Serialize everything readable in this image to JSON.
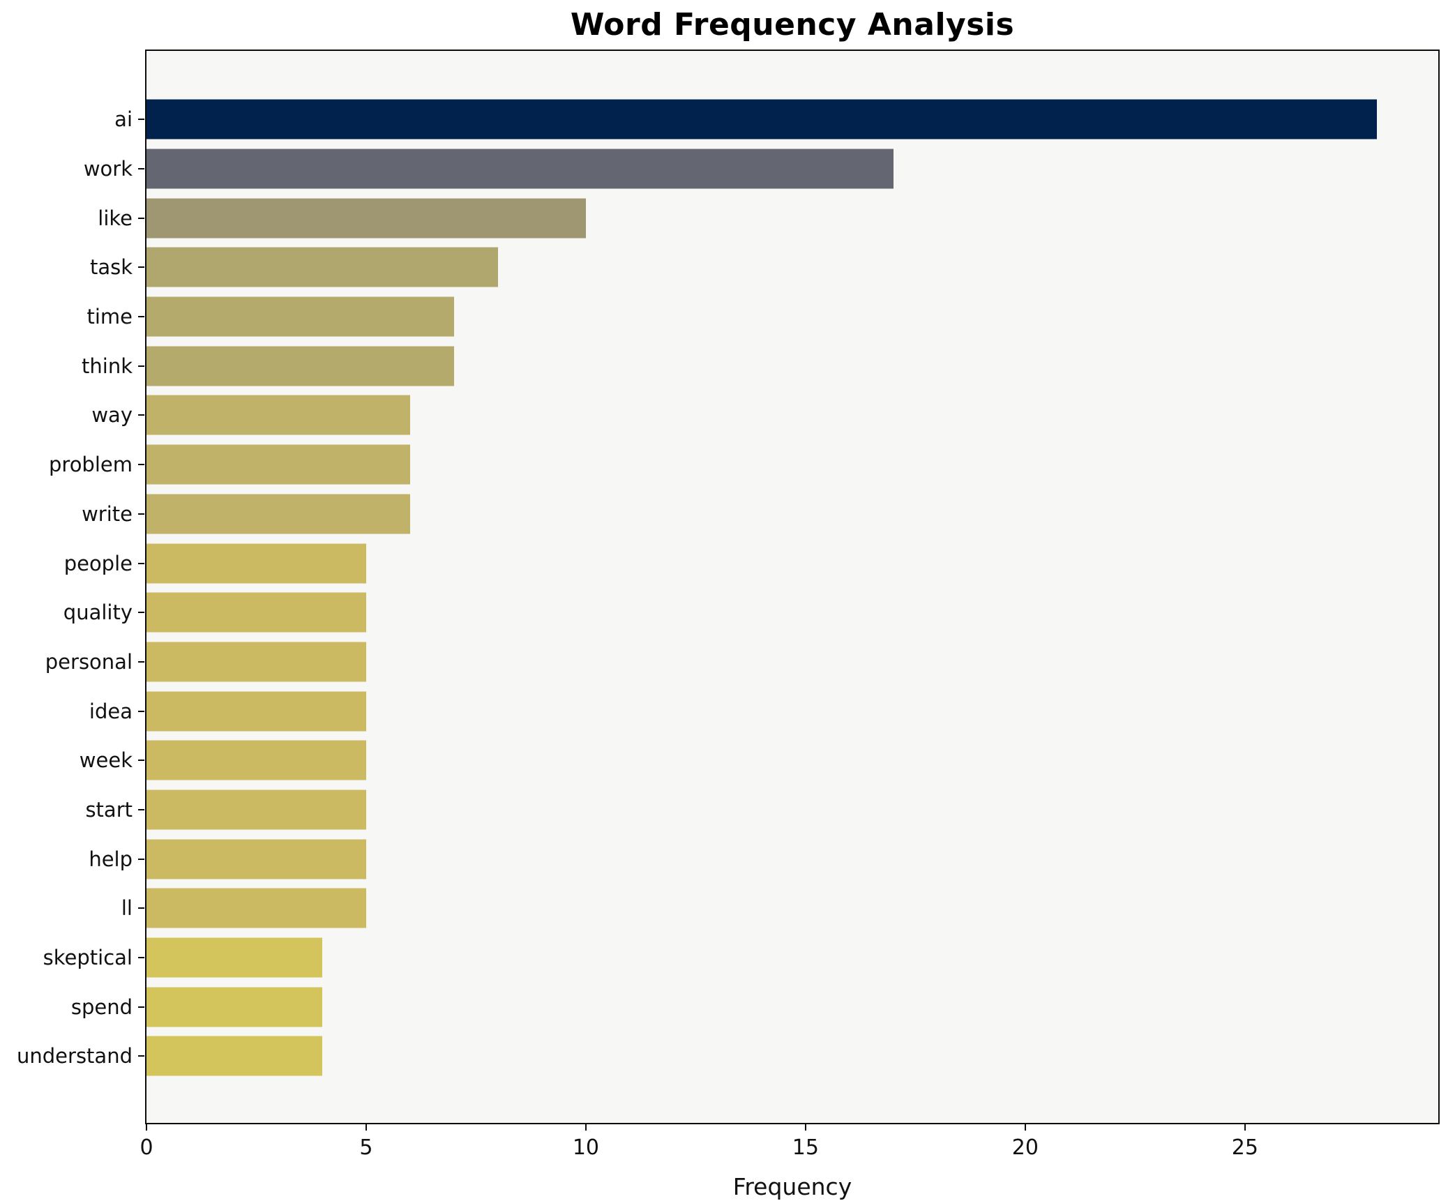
{
  "chart_data": {
    "type": "bar",
    "orientation": "horizontal",
    "title": "Word Frequency Analysis",
    "xlabel": "Frequency",
    "ylabel": "",
    "categories": [
      "ai",
      "work",
      "like",
      "task",
      "time",
      "think",
      "way",
      "problem",
      "write",
      "people",
      "quality",
      "personal",
      "idea",
      "week",
      "start",
      "help",
      "ll",
      "skeptical",
      "spend",
      "understand"
    ],
    "values": [
      28,
      17,
      10,
      8,
      7,
      7,
      6,
      6,
      6,
      5,
      5,
      5,
      5,
      5,
      5,
      5,
      5,
      4,
      4,
      4
    ],
    "bar_colors": [
      "#02224e",
      "#646671",
      "#9e9772",
      "#b0a76f",
      "#b4aa6b",
      "#b4aa6b",
      "#c0b268",
      "#c0b268",
      "#c0b268",
      "#cbba62",
      "#cbba62",
      "#cbba62",
      "#cbba62",
      "#cbba62",
      "#cbba62",
      "#cbba62",
      "#cbba62",
      "#d4c45c",
      "#d4c45c",
      "#d4c45c"
    ],
    "xlim": [
      0,
      29.4
    ],
    "xticks": [
      0,
      5,
      10,
      15,
      20,
      25
    ],
    "grid": false,
    "legend_position": "none",
    "plot_bg": "#f7f7f5",
    "figure_bg": "#ffffff",
    "spine_color": "#0c0c0c"
  }
}
